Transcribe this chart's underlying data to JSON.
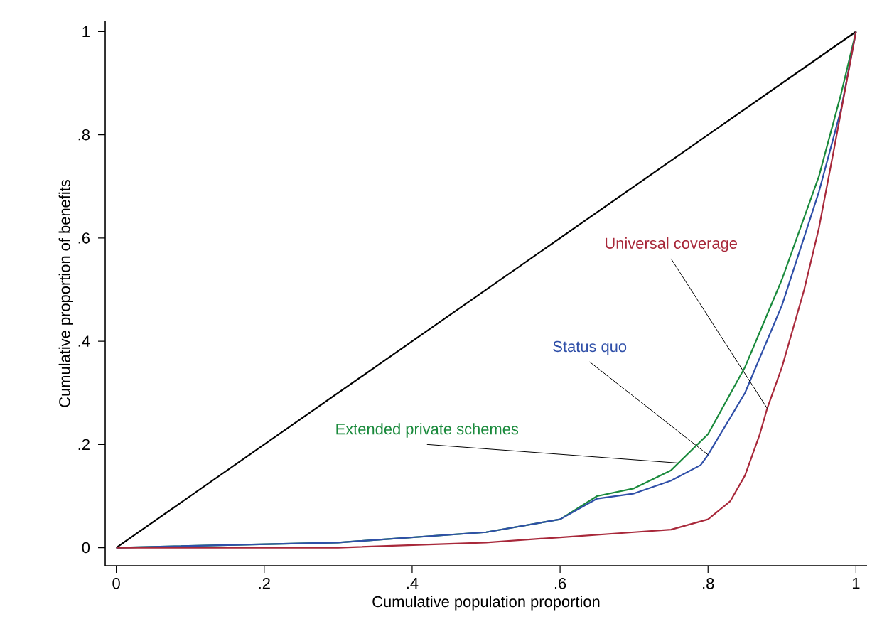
{
  "chart_data": {
    "type": "line",
    "xlabel": "Cumulative population proportion",
    "ylabel": "Cumulative proportion of benefits",
    "xlim": [
      -0.015,
      1.015
    ],
    "ylim": [
      -0.035,
      1.02
    ],
    "xticks": [
      0,
      {
        "value": 0.2,
        "label": ".2"
      },
      {
        "value": 0.4,
        "label": ".4"
      },
      {
        "value": 0.6,
        "label": ".6"
      },
      {
        "value": 0.8,
        "label": ".8"
      },
      1
    ],
    "yticks": [
      0,
      {
        "value": 0.2,
        "label": ".2"
      },
      {
        "value": 0.4,
        "label": ".4"
      },
      {
        "value": 0.6,
        "label": ".6"
      },
      {
        "value": 0.8,
        "label": ".8"
      },
      1
    ],
    "grid": false,
    "legend": false,
    "marker": "none",
    "line_style": "solid",
    "series": [
      {
        "color": "#000000",
        "x": [
          0,
          1
        ],
        "values": [
          0,
          1
        ]
      },
      {
        "name": "Extended private schemes",
        "color": "#1a8a3c",
        "x": [
          0,
          0.3,
          0.5,
          0.6,
          0.65,
          0.7,
          0.75,
          0.8,
          0.85,
          0.9,
          0.95,
          0.98,
          1
        ],
        "values": [
          0,
          0.01,
          0.03,
          0.055,
          0.1,
          0.115,
          0.15,
          0.22,
          0.35,
          0.52,
          0.72,
          0.88,
          1
        ]
      },
      {
        "name": "Status quo",
        "color": "#2f4fa8",
        "x": [
          0,
          0.3,
          0.5,
          0.6,
          0.65,
          0.7,
          0.75,
          0.79,
          0.8,
          0.85,
          0.9,
          0.95,
          0.98,
          1
        ],
        "values": [
          0,
          0.01,
          0.03,
          0.055,
          0.095,
          0.105,
          0.13,
          0.16,
          0.18,
          0.3,
          0.47,
          0.69,
          0.85,
          1
        ]
      },
      {
        "name": "Universal coverage",
        "color": "#a8283a",
        "x": [
          0,
          0.3,
          0.5,
          0.6,
          0.7,
          0.75,
          0.8,
          0.83,
          0.85,
          0.87,
          0.88,
          0.9,
          0.93,
          0.95,
          0.97,
          1
        ],
        "values": [
          0,
          0.0,
          0.01,
          0.02,
          0.03,
          0.035,
          0.055,
          0.09,
          0.14,
          0.22,
          0.27,
          0.35,
          0.5,
          0.62,
          0.77,
          1
        ]
      }
    ]
  }
}
